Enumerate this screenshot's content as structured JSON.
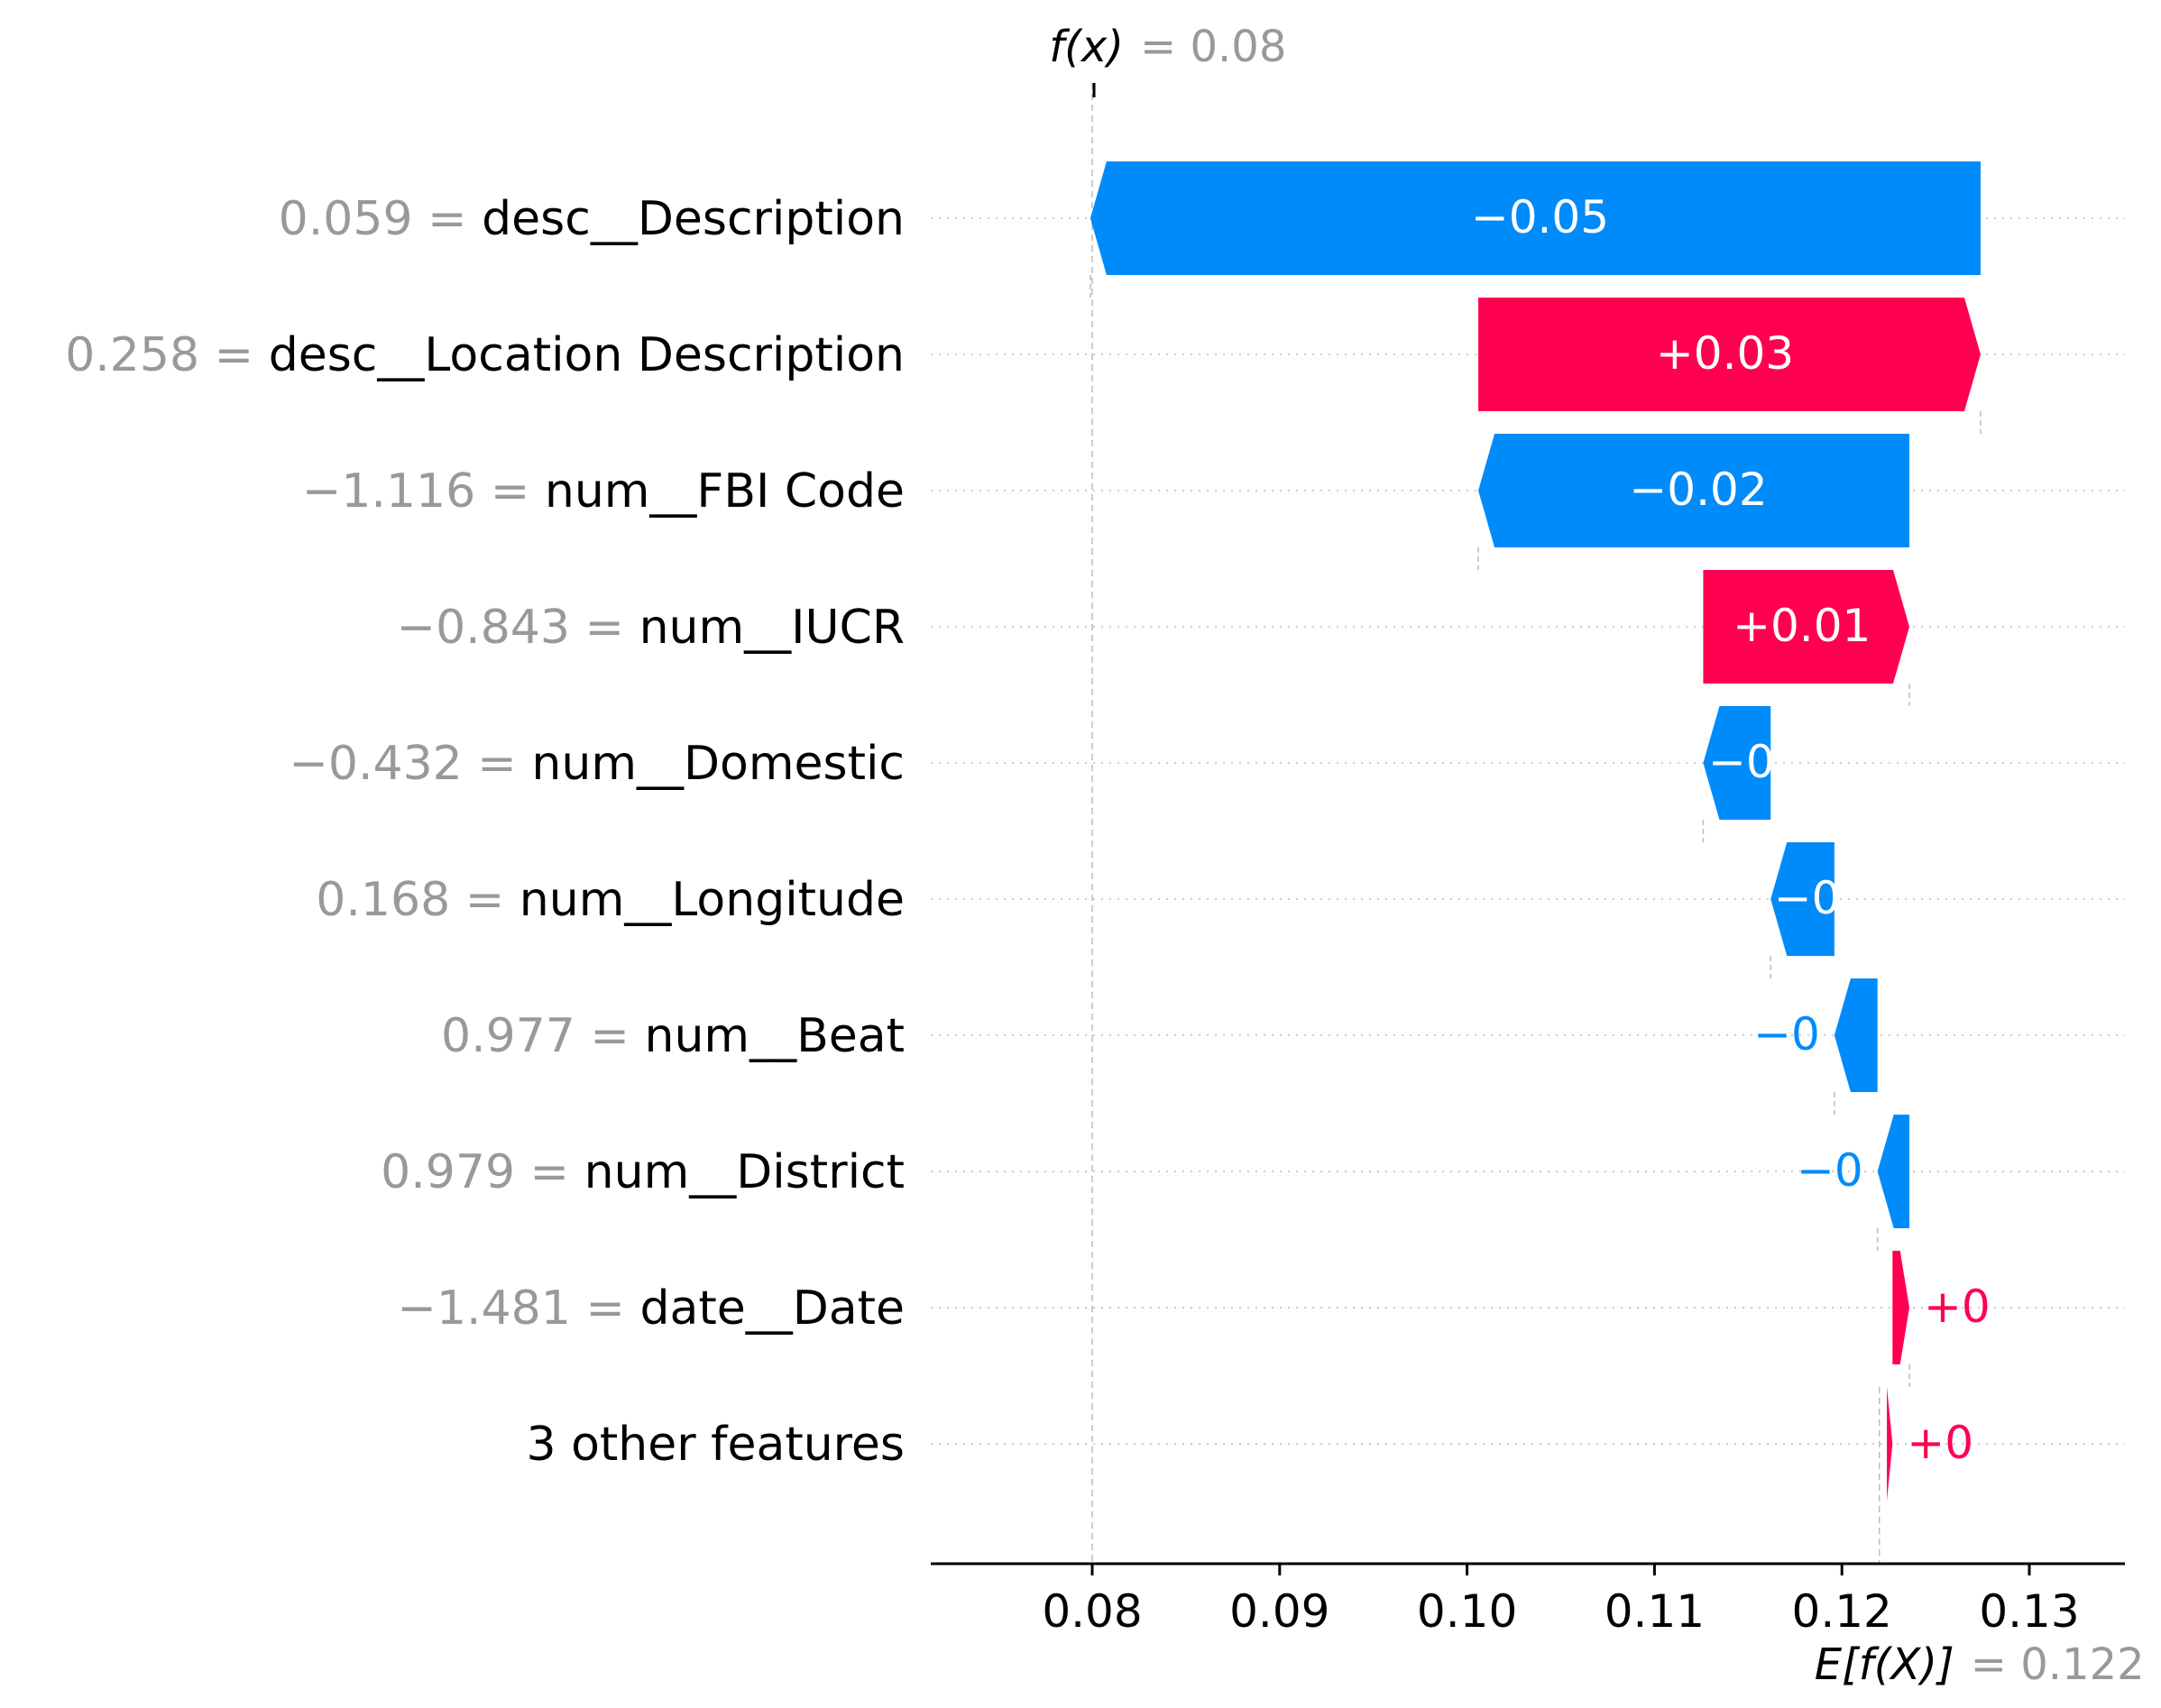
{
  "chart_data": {
    "type": "waterfall",
    "fx_label": "f(x)",
    "fx_value": "= 0.08",
    "base_label": "E[f(X)]",
    "base_value": "= 0.122",
    "fx": 0.08,
    "base": 0.122,
    "xlim": [
      0.072,
      0.135
    ],
    "xticks": [
      0.08,
      0.09,
      0.1,
      0.11,
      0.12,
      0.13
    ],
    "xtick_labels": [
      "0.08",
      "0.09",
      "0.10",
      "0.11",
      "0.12",
      "0.13"
    ],
    "features": [
      {
        "value": "0.059 =",
        "name": "desc__Description",
        "start": 0.1274,
        "end": 0.0799,
        "label": "−0.05"
      },
      {
        "value": "0.258 =",
        "name": "desc__Location Description",
        "start": 0.1006,
        "end": 0.1274,
        "label": "+0.03"
      },
      {
        "value": "−1.116 =",
        "name": "num__FBI Code",
        "start": 0.1236,
        "end": 0.1006,
        "label": "−0.02"
      },
      {
        "value": "−0.843 =",
        "name": "num__IUCR",
        "start": 0.1126,
        "end": 0.1236,
        "label": "+0.01"
      },
      {
        "value": "−0.432 =",
        "name": "num__Domestic",
        "start": 0.1162,
        "end": 0.1126,
        "label": "−0"
      },
      {
        "value": "0.168 =",
        "name": "num__Longitude",
        "start": 0.1196,
        "end": 0.1162,
        "label": "−0"
      },
      {
        "value": "0.977 =",
        "name": "num__Beat",
        "start": 0.1219,
        "end": 0.1196,
        "label": "−0"
      },
      {
        "value": "0.979 =",
        "name": "num__District",
        "start": 0.1236,
        "end": 0.1219,
        "label": "−0"
      },
      {
        "value": "−1.481 =",
        "name": "date__Date",
        "start": 0.1227,
        "end": 0.1236,
        "label": "+0"
      },
      {
        "value": "",
        "name": "3 other features",
        "start": 0.1224,
        "end": 0.1227,
        "label": "+0"
      }
    ],
    "colors": {
      "positive": "#ff0051",
      "negative": "#008bfb",
      "value_text": "#999999",
      "name_text": "#000000",
      "grid": "#cccccc"
    }
  }
}
